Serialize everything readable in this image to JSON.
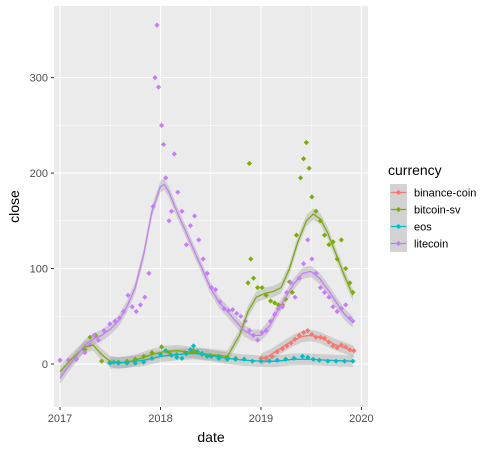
{
  "chart_data": {
    "type": "scatter",
    "xlabel": "date",
    "ylabel": "close",
    "x_ticks": [
      "2017",
      "2018",
      "2019",
      "2020"
    ],
    "y_ticks": [
      0,
      100,
      200,
      300
    ],
    "xlim": [
      "2016-12-10",
      "2020-01-25"
    ],
    "ylim": [
      -45,
      375
    ],
    "grid": true,
    "legend": {
      "title": "currency",
      "position": "right"
    },
    "smoothing": "loess trend with confidence band per series",
    "series": [
      {
        "name": "binance-coin",
        "color": "#F8766D",
        "points": [
          [
            "2019-01-01",
            6
          ],
          [
            "2019-01-20",
            6
          ],
          [
            "2019-02-10",
            8
          ],
          [
            "2019-03-01",
            13
          ],
          [
            "2019-03-20",
            16
          ],
          [
            "2019-04-05",
            19
          ],
          [
            "2019-04-20",
            22
          ],
          [
            "2019-05-05",
            26
          ],
          [
            "2019-05-20",
            30
          ],
          [
            "2019-06-05",
            33
          ],
          [
            "2019-06-20",
            35
          ],
          [
            "2019-07-05",
            31
          ],
          [
            "2019-07-20",
            28
          ],
          [
            "2019-08-05",
            28
          ],
          [
            "2019-08-20",
            27
          ],
          [
            "2019-09-05",
            23
          ],
          [
            "2019-09-20",
            19
          ],
          [
            "2019-10-05",
            17
          ],
          [
            "2019-10-20",
            20
          ],
          [
            "2019-11-05",
            18
          ],
          [
            "2019-11-20",
            15
          ],
          [
            "2019-12-05",
            14
          ]
        ],
        "smooth": [
          [
            "2019-01-01",
            5
          ],
          [
            "2019-02-01",
            9
          ],
          [
            "2019-03-01",
            14
          ],
          [
            "2019-04-01",
            20
          ],
          [
            "2019-05-01",
            25
          ],
          [
            "2019-06-01",
            29
          ],
          [
            "2019-07-01",
            30
          ],
          [
            "2019-08-01",
            28
          ],
          [
            "2019-09-01",
            24
          ],
          [
            "2019-10-01",
            20
          ],
          [
            "2019-11-01",
            17
          ],
          [
            "2019-12-05",
            13
          ]
        ]
      },
      {
        "name": "bitcoin-sv",
        "color": "#7CAE00",
        "points": [
          [
            "2017-01-01",
            4
          ],
          [
            "2017-02-01",
            4
          ],
          [
            "2017-03-01",
            5
          ],
          [
            "2017-04-01",
            15
          ],
          [
            "2017-04-20",
            28
          ],
          [
            "2017-05-10",
            30
          ],
          [
            "2017-06-01",
            3
          ],
          [
            "2017-07-01",
            2
          ],
          [
            "2017-08-01",
            2
          ],
          [
            "2017-09-01",
            3
          ],
          [
            "2017-10-01",
            5
          ],
          [
            "2017-11-01",
            8
          ],
          [
            "2017-12-01",
            12
          ],
          [
            "2018-01-05",
            18
          ],
          [
            "2018-02-01",
            12
          ],
          [
            "2018-03-01",
            10
          ],
          [
            "2018-04-01",
            12
          ],
          [
            "2018-05-01",
            14
          ],
          [
            "2018-06-01",
            10
          ],
          [
            "2018-07-01",
            9
          ],
          [
            "2018-08-01",
            8
          ],
          [
            "2018-09-01",
            7
          ],
          [
            "2018-10-01",
            6
          ],
          [
            "2018-11-15",
            85
          ],
          [
            "2018-11-20",
            210
          ],
          [
            "2018-11-25",
            110
          ],
          [
            "2018-12-05",
            90
          ],
          [
            "2018-12-20",
            80
          ],
          [
            "2019-01-05",
            80
          ],
          [
            "2019-01-20",
            72
          ],
          [
            "2019-02-05",
            66
          ],
          [
            "2019-02-20",
            64
          ],
          [
            "2019-03-05",
            62
          ],
          [
            "2019-03-20",
            62
          ],
          [
            "2019-04-01",
            68
          ],
          [
            "2019-04-15",
            86
          ],
          [
            "2019-04-25",
            75
          ],
          [
            "2019-05-10",
            135
          ],
          [
            "2019-05-25",
            195
          ],
          [
            "2019-06-05",
            215
          ],
          [
            "2019-06-15",
            232
          ],
          [
            "2019-06-25",
            205
          ],
          [
            "2019-07-05",
            175
          ],
          [
            "2019-07-20",
            160
          ],
          [
            "2019-08-05",
            150
          ],
          [
            "2019-08-20",
            135
          ],
          [
            "2019-09-05",
            125
          ],
          [
            "2019-09-20",
            128
          ],
          [
            "2019-10-05",
            110
          ],
          [
            "2019-10-20",
            130
          ],
          [
            "2019-11-05",
            100
          ],
          [
            "2019-11-20",
            85
          ],
          [
            "2019-12-01",
            75
          ]
        ],
        "smooth": [
          [
            "2017-01-01",
            -8
          ],
          [
            "2017-02-01",
            2
          ],
          [
            "2017-03-01",
            10
          ],
          [
            "2017-04-01",
            18
          ],
          [
            "2017-05-01",
            20
          ],
          [
            "2017-06-01",
            10
          ],
          [
            "2017-07-01",
            3
          ],
          [
            "2017-08-01",
            1
          ],
          [
            "2017-09-01",
            2
          ],
          [
            "2017-10-01",
            4
          ],
          [
            "2017-11-01",
            7
          ],
          [
            "2017-12-01",
            10
          ],
          [
            "2018-01-15",
            13
          ],
          [
            "2018-03-01",
            14
          ],
          [
            "2018-05-01",
            12
          ],
          [
            "2018-07-01",
            10
          ],
          [
            "2018-09-01",
            8
          ],
          [
            "2018-10-15",
            30
          ],
          [
            "2018-11-15",
            55
          ],
          [
            "2018-12-15",
            70
          ],
          [
            "2019-01-15",
            74
          ],
          [
            "2019-02-15",
            76
          ],
          [
            "2019-03-15",
            80
          ],
          [
            "2019-04-15",
            100
          ],
          [
            "2019-05-15",
            128
          ],
          [
            "2019-06-15",
            150
          ],
          [
            "2019-07-10",
            157
          ],
          [
            "2019-08-05",
            152
          ],
          [
            "2019-09-01",
            137
          ],
          [
            "2019-10-01",
            115
          ],
          [
            "2019-11-01",
            92
          ],
          [
            "2019-12-01",
            72
          ]
        ]
      },
      {
        "name": "eos",
        "color": "#00BFC4",
        "points": [
          [
            "2017-07-01",
            1
          ],
          [
            "2017-07-15",
            2
          ],
          [
            "2017-08-01",
            1
          ],
          [
            "2017-09-01",
            1
          ],
          [
            "2017-10-01",
            1
          ],
          [
            "2017-11-01",
            2
          ],
          [
            "2017-12-01",
            6
          ],
          [
            "2018-01-01",
            10
          ],
          [
            "2018-01-20",
            14
          ],
          [
            "2018-02-10",
            9
          ],
          [
            "2018-03-01",
            7
          ],
          [
            "2018-03-20",
            6
          ],
          [
            "2018-04-05",
            11
          ],
          [
            "2018-04-20",
            15
          ],
          [
            "2018-05-01",
            19
          ],
          [
            "2018-05-15",
            13
          ],
          [
            "2018-06-01",
            11
          ],
          [
            "2018-06-20",
            8
          ],
          [
            "2018-07-05",
            8
          ],
          [
            "2018-08-01",
            6
          ],
          [
            "2018-09-01",
            5
          ],
          [
            "2018-10-01",
            5
          ],
          [
            "2018-11-01",
            5
          ],
          [
            "2018-12-01",
            3
          ],
          [
            "2019-01-01",
            3
          ],
          [
            "2019-02-01",
            3
          ],
          [
            "2019-03-01",
            4
          ],
          [
            "2019-04-01",
            5
          ],
          [
            "2019-05-01",
            6
          ],
          [
            "2019-06-01",
            8
          ],
          [
            "2019-06-20",
            7
          ],
          [
            "2019-07-10",
            5
          ],
          [
            "2019-08-01",
            4
          ],
          [
            "2019-09-01",
            3
          ],
          [
            "2019-10-01",
            3
          ],
          [
            "2019-11-01",
            3
          ],
          [
            "2019-12-01",
            3
          ]
        ],
        "smooth": [
          [
            "2017-07-01",
            1
          ],
          [
            "2017-09-01",
            2
          ],
          [
            "2017-11-01",
            4
          ],
          [
            "2018-01-01",
            8
          ],
          [
            "2018-03-01",
            10
          ],
          [
            "2018-05-01",
            11
          ],
          [
            "2018-07-01",
            9
          ],
          [
            "2018-09-01",
            6
          ],
          [
            "2018-11-01",
            4
          ],
          [
            "2019-01-01",
            3
          ],
          [
            "2019-03-01",
            3
          ],
          [
            "2019-05-01",
            5
          ],
          [
            "2019-07-01",
            5
          ],
          [
            "2019-09-01",
            4
          ],
          [
            "2019-12-01",
            3
          ]
        ]
      },
      {
        "name": "litecoin",
        "color": "#C77CFF",
        "points": [
          [
            "2017-01-01",
            4
          ],
          [
            "2017-02-01",
            4
          ],
          [
            "2017-03-01",
            5
          ],
          [
            "2017-04-01",
            12
          ],
          [
            "2017-04-20",
            20
          ],
          [
            "2017-05-05",
            30
          ],
          [
            "2017-05-20",
            25
          ],
          [
            "2017-06-10",
            35
          ],
          [
            "2017-07-01",
            42
          ],
          [
            "2017-07-20",
            45
          ],
          [
            "2017-08-05",
            48
          ],
          [
            "2017-08-20",
            55
          ],
          [
            "2017-09-05",
            72
          ],
          [
            "2017-09-20",
            60
          ],
          [
            "2017-10-05",
            55
          ],
          [
            "2017-10-20",
            62
          ],
          [
            "2017-11-05",
            70
          ],
          [
            "2017-11-20",
            95
          ],
          [
            "2017-12-05",
            165
          ],
          [
            "2017-12-12",
            300
          ],
          [
            "2017-12-19",
            355
          ],
          [
            "2017-12-25",
            290
          ],
          [
            "2018-01-05",
            250
          ],
          [
            "2018-01-12",
            230
          ],
          [
            "2018-01-20",
            195
          ],
          [
            "2018-02-01",
            150
          ],
          [
            "2018-02-10",
            160
          ],
          [
            "2018-02-20",
            220
          ],
          [
            "2018-03-05",
            180
          ],
          [
            "2018-03-20",
            160
          ],
          [
            "2018-04-05",
            125
          ],
          [
            "2018-04-20",
            145
          ],
          [
            "2018-05-05",
            155
          ],
          [
            "2018-05-20",
            130
          ],
          [
            "2018-06-05",
            110
          ],
          [
            "2018-06-20",
            95
          ],
          [
            "2018-07-05",
            80
          ],
          [
            "2018-07-20",
            78
          ],
          [
            "2018-08-05",
            65
          ],
          [
            "2018-08-20",
            58
          ],
          [
            "2018-09-05",
            56
          ],
          [
            "2018-09-20",
            57
          ],
          [
            "2018-10-05",
            53
          ],
          [
            "2018-10-20",
            50
          ],
          [
            "2018-11-05",
            45
          ],
          [
            "2018-11-20",
            35
          ],
          [
            "2018-12-05",
            30
          ],
          [
            "2018-12-20",
            25
          ],
          [
            "2019-01-05",
            33
          ],
          [
            "2019-01-20",
            35
          ],
          [
            "2019-02-05",
            45
          ],
          [
            "2019-02-20",
            52
          ],
          [
            "2019-03-05",
            58
          ],
          [
            "2019-03-20",
            60
          ],
          [
            "2019-04-05",
            75
          ],
          [
            "2019-04-20",
            85
          ],
          [
            "2019-05-05",
            70
          ],
          [
            "2019-05-20",
            90
          ],
          [
            "2019-06-05",
            105
          ],
          [
            "2019-06-20",
            130
          ],
          [
            "2019-07-05",
            110
          ],
          [
            "2019-07-20",
            95
          ],
          [
            "2019-08-05",
            80
          ],
          [
            "2019-08-20",
            75
          ],
          [
            "2019-09-05",
            70
          ],
          [
            "2019-09-20",
            60
          ],
          [
            "2019-10-05",
            55
          ],
          [
            "2019-10-20",
            58
          ],
          [
            "2019-11-05",
            62
          ],
          [
            "2019-11-20",
            48
          ],
          [
            "2019-12-01",
            45
          ]
        ],
        "smooth": [
          [
            "2017-01-01",
            -15
          ],
          [
            "2017-02-01",
            -2
          ],
          [
            "2017-03-01",
            8
          ],
          [
            "2017-04-01",
            20
          ],
          [
            "2017-05-01",
            26
          ],
          [
            "2017-06-01",
            30
          ],
          [
            "2017-07-01",
            36
          ],
          [
            "2017-08-01",
            45
          ],
          [
            "2017-09-01",
            60
          ],
          [
            "2017-10-01",
            80
          ],
          [
            "2017-11-01",
            115
          ],
          [
            "2017-12-01",
            160
          ],
          [
            "2018-01-01",
            186
          ],
          [
            "2018-01-15",
            188
          ],
          [
            "2018-02-01",
            180
          ],
          [
            "2018-03-01",
            160
          ],
          [
            "2018-04-01",
            140
          ],
          [
            "2018-05-01",
            120
          ],
          [
            "2018-06-01",
            100
          ],
          [
            "2018-07-01",
            80
          ],
          [
            "2018-08-01",
            65
          ],
          [
            "2018-09-01",
            55
          ],
          [
            "2018-10-01",
            45
          ],
          [
            "2018-11-01",
            35
          ],
          [
            "2018-12-01",
            30
          ],
          [
            "2019-01-01",
            30
          ],
          [
            "2019-02-01",
            40
          ],
          [
            "2019-03-01",
            55
          ],
          [
            "2019-04-01",
            70
          ],
          [
            "2019-05-01",
            84
          ],
          [
            "2019-06-01",
            95
          ],
          [
            "2019-07-01",
            97
          ],
          [
            "2019-08-01",
            90
          ],
          [
            "2019-09-01",
            78
          ],
          [
            "2019-10-01",
            65
          ],
          [
            "2019-11-01",
            52
          ],
          [
            "2019-12-01",
            44
          ]
        ]
      }
    ]
  }
}
